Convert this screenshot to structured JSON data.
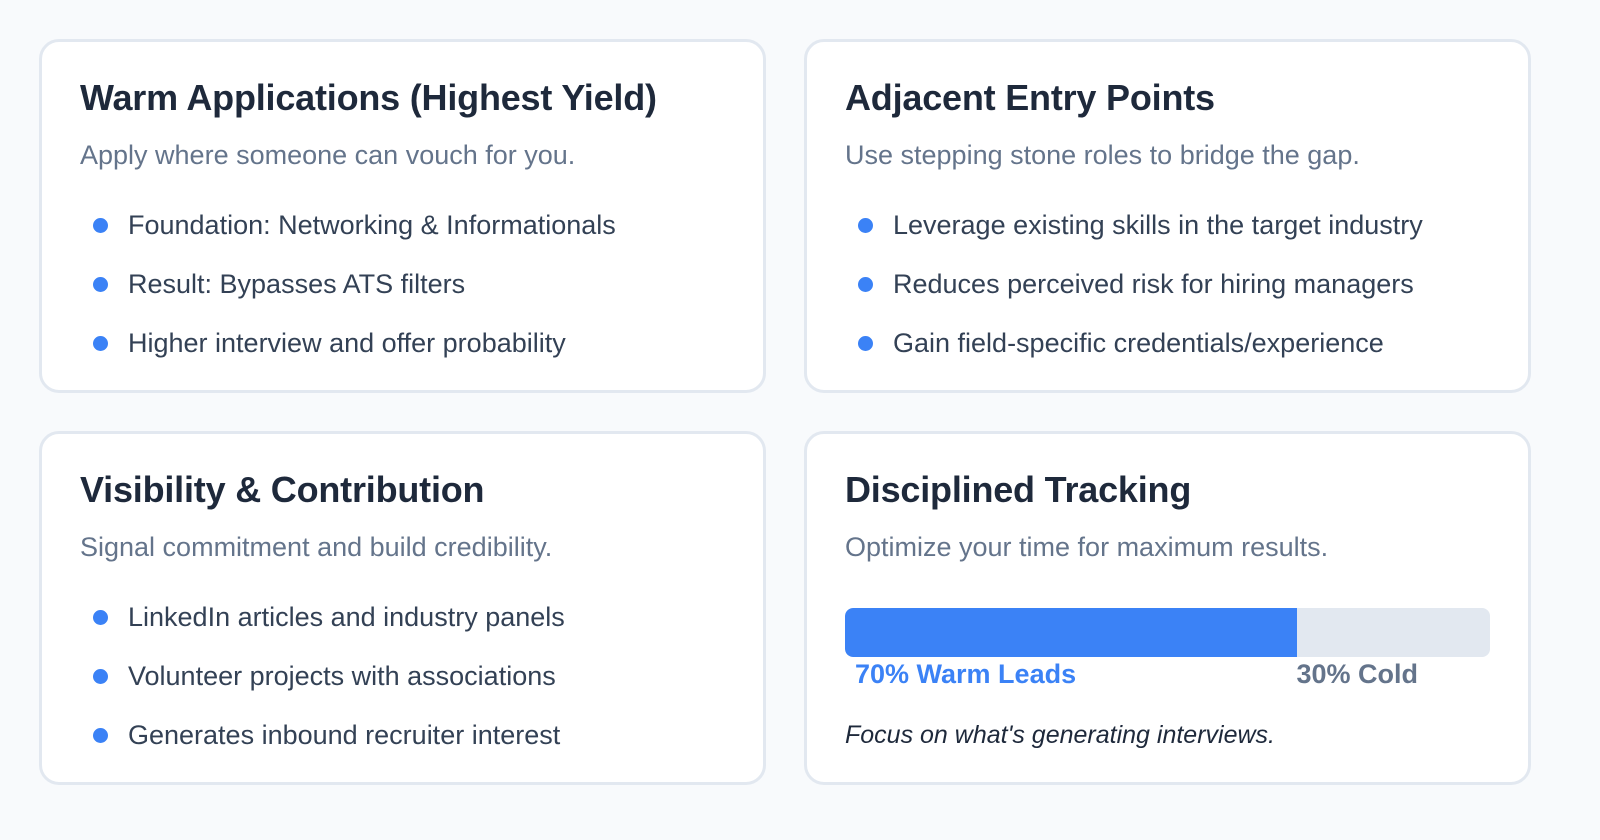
{
  "cards": [
    {
      "title": "Warm Applications (Highest Yield)",
      "subtitle": "Apply where someone can vouch for you.",
      "bullets": [
        "Foundation: Networking & Informationals",
        "Result: Bypasses ATS filters",
        "Higher interview and offer probability"
      ]
    },
    {
      "title": "Adjacent Entry Points",
      "subtitle": "Use stepping stone roles to bridge the gap.",
      "bullets": [
        "Leverage existing skills in the target industry",
        "Reduces perceived risk for hiring managers",
        "Gain field-specific credentials/experience"
      ]
    },
    {
      "title": "Visibility & Contribution",
      "subtitle": "Signal commitment and build credibility.",
      "bullets": [
        "LinkedIn articles and industry panels",
        "Volunteer projects with associations",
        "Generates inbound recruiter interest"
      ]
    },
    {
      "title": "Disciplined Tracking",
      "subtitle": "Optimize your time for maximum results.",
      "progress": {
        "warm_percent": 70,
        "warm_label": "70% Warm Leads",
        "cold_label": "30% Cold"
      },
      "note": "Focus on what's generating interviews."
    }
  ],
  "colors": {
    "accent": "#3b82f6",
    "title": "#1e293b",
    "subtitle": "#64748b",
    "border": "#e2e8f0",
    "background": "#f8fafc"
  }
}
